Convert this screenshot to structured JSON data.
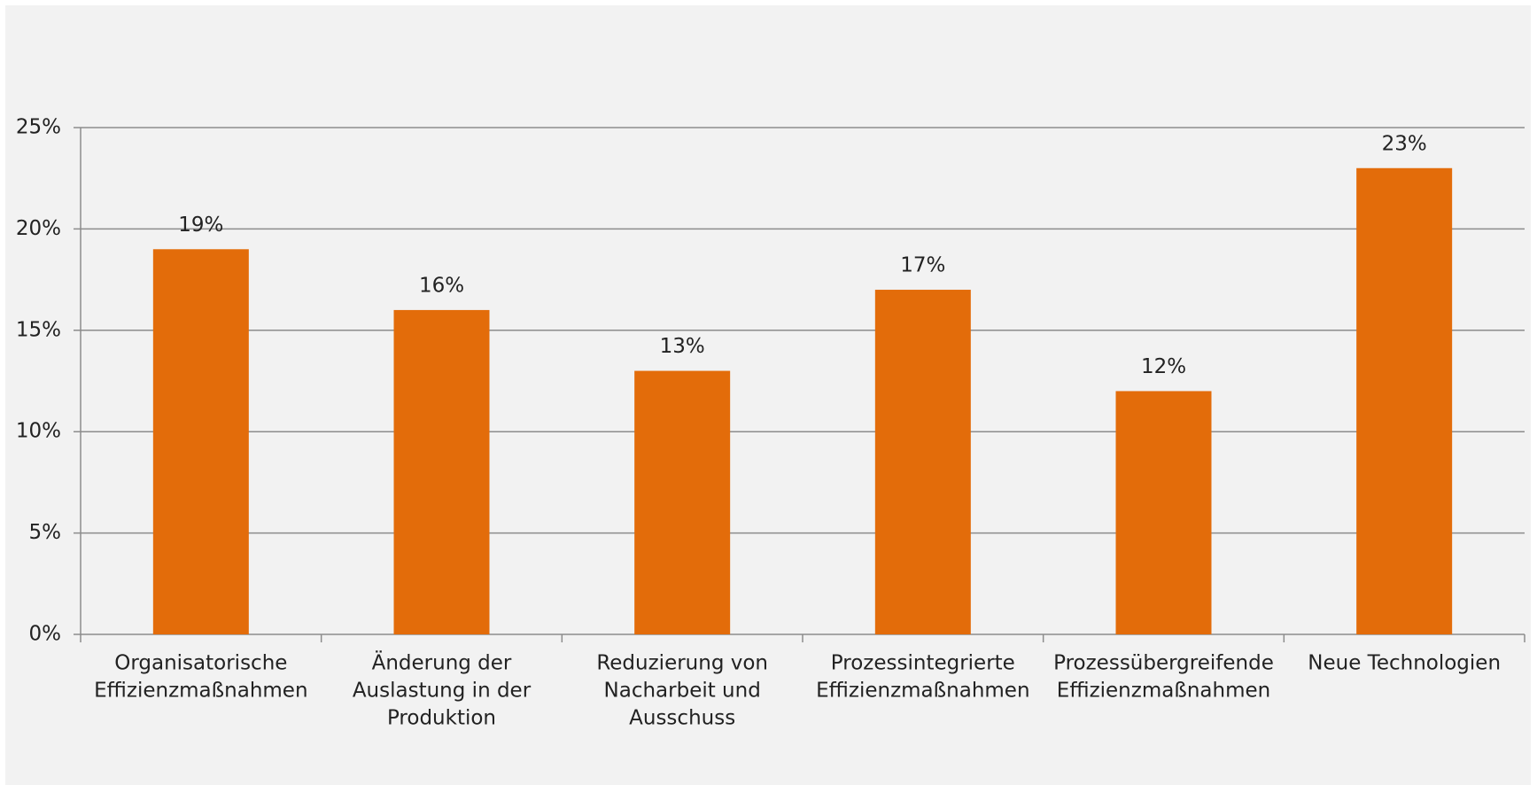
{
  "chart_data": {
    "type": "bar",
    "categories": [
      [
        "Organisatorische",
        "Effizienzmaßnahmen"
      ],
      [
        "Änderung der",
        "Auslastung in der",
        "Produktion"
      ],
      [
        "Reduzierung von",
        "Nacharbeit und",
        "Ausschuss"
      ],
      [
        "Prozessintegrierte",
        "Effizienzmaßnahmen"
      ],
      [
        "Prozessübergreifende",
        "Effizienzmaßnahmen"
      ],
      [
        "Neue Technologien"
      ]
    ],
    "values": [
      19,
      16,
      13,
      17,
      12,
      23
    ],
    "value_labels": [
      "19%",
      "16%",
      "13%",
      "17%",
      "12%",
      "23%"
    ],
    "color": "#e36c0a",
    "ylim": [
      0,
      25
    ],
    "yticks": [
      {
        "value": 0,
        "label": "0%"
      },
      {
        "value": 5,
        "label": "5%"
      },
      {
        "value": 10,
        "label": "10%"
      },
      {
        "value": 15,
        "label": "15%"
      },
      {
        "value": 20,
        "label": "20%"
      },
      {
        "value": 25,
        "label": "25%"
      }
    ],
    "grid": true
  }
}
